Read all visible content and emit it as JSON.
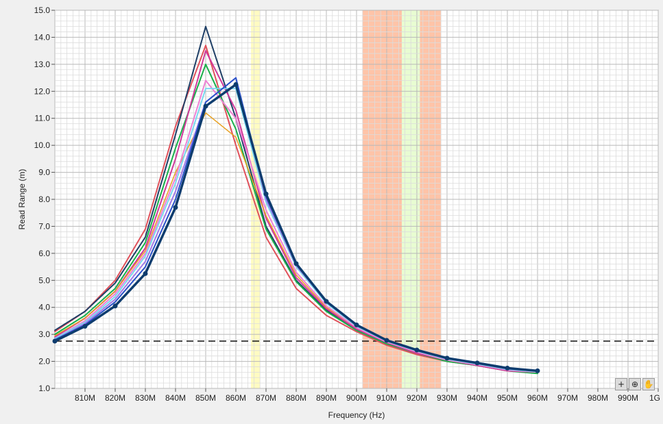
{
  "chart_data": {
    "type": "line",
    "xlabel": "Frequency (Hz)",
    "ylabel": "Read Range (m)",
    "xlim": [
      800,
      1000
    ],
    "ylim": [
      1.0,
      15.0
    ],
    "x_tick_values": [
      810,
      820,
      830,
      840,
      850,
      860,
      870,
      880,
      890,
      900,
      910,
      920,
      930,
      940,
      950,
      960,
      970,
      980,
      990,
      1000
    ],
    "x_tick_labels": [
      "810M",
      "820M",
      "830M",
      "840M",
      "850M",
      "860M",
      "870M",
      "880M",
      "890M",
      "900M",
      "910M",
      "920M",
      "930M",
      "940M",
      "950M",
      "960M",
      "970M",
      "980M",
      "990M",
      "1G"
    ],
    "y_tick_values": [
      1,
      2,
      3,
      4,
      5,
      6,
      7,
      8,
      9,
      10,
      11,
      12,
      13,
      14,
      15
    ],
    "y_tick_labels": [
      "1.0",
      "2.0",
      "3.0",
      "4.0",
      "5.0",
      "6.0",
      "7.0",
      "8.0",
      "9.0",
      "10.0",
      "11.0",
      "12.0",
      "13.0",
      "14.0",
      "15.0"
    ],
    "grid": true,
    "threshold_line": 2.75,
    "bands": [
      {
        "from": 865,
        "to": 868,
        "color": "#fffbc2"
      },
      {
        "from": 902,
        "to": 915,
        "color": "#ffc4a8"
      },
      {
        "from": 915,
        "to": 921,
        "color": "#e8fcd2"
      },
      {
        "from": 921,
        "to": 928,
        "color": "#ffc4a8"
      }
    ],
    "x": [
      800,
      810,
      820,
      830,
      840,
      850,
      860,
      870,
      880,
      890,
      900,
      910,
      920,
      930,
      940,
      950,
      960
    ],
    "series": [
      {
        "color": "#e0505a",
        "width": 2,
        "values": [
          3.1,
          3.85,
          5.0,
          6.9,
          10.7,
          13.7,
          10.0,
          6.6,
          4.7,
          3.7,
          3.1,
          2.6,
          2.25,
          2.0,
          1.85,
          1.65,
          1.6
        ]
      },
      {
        "color": "#1f3f66",
        "width": 2,
        "values": [
          3.15,
          3.85,
          4.9,
          6.6,
          10.4,
          14.4,
          11.0,
          7.0,
          5.0,
          3.9,
          3.2,
          2.7,
          2.35,
          2.05,
          1.9,
          1.7,
          1.62
        ]
      },
      {
        "color": "#18b04a",
        "width": 2,
        "values": [
          3.0,
          3.7,
          4.7,
          6.4,
          9.9,
          13.0,
          10.6,
          6.9,
          4.95,
          3.85,
          3.15,
          2.65,
          2.3,
          2.0,
          1.85,
          1.65,
          1.55
        ]
      },
      {
        "color": "#d0389a",
        "width": 2,
        "values": [
          2.9,
          3.6,
          4.6,
          6.2,
          9.5,
          13.5,
          11.3,
          7.3,
          5.1,
          3.95,
          3.2,
          2.7,
          2.3,
          2.05,
          1.85,
          1.65,
          1.6
        ]
      },
      {
        "color": "#e8a020",
        "width": 1.5,
        "values": [
          2.95,
          3.6,
          4.6,
          6.1,
          9.0,
          11.2,
          10.3,
          7.4,
          5.2,
          4.0,
          3.25,
          2.72,
          2.35,
          2.05,
          1.88,
          1.68,
          1.6
        ]
      },
      {
        "color": "#ee82d4",
        "width": 2,
        "values": [
          2.85,
          3.5,
          4.5,
          6.0,
          8.8,
          12.4,
          11.0,
          7.6,
          5.3,
          4.05,
          3.25,
          2.72,
          2.35,
          2.05,
          1.88,
          1.68,
          1.6
        ]
      },
      {
        "color": "#7ad7f0",
        "width": 2,
        "values": [
          2.85,
          3.45,
          4.4,
          5.9,
          8.6,
          12.1,
          12.1,
          7.9,
          5.5,
          4.15,
          3.3,
          2.75,
          2.38,
          2.08,
          1.9,
          1.7,
          1.62
        ]
      },
      {
        "color": "#a07ae8",
        "width": 2,
        "values": [
          2.8,
          3.4,
          4.3,
          5.7,
          8.3,
          11.6,
          12.5,
          8.0,
          5.55,
          4.2,
          3.35,
          2.78,
          2.4,
          2.1,
          1.92,
          1.72,
          1.64
        ]
      },
      {
        "color": "#2a52c8",
        "width": 2,
        "values": [
          2.8,
          3.35,
          4.2,
          5.5,
          8.0,
          11.6,
          12.5,
          8.1,
          5.6,
          4.2,
          3.35,
          2.78,
          2.42,
          2.12,
          1.94,
          1.74,
          1.65
        ]
      },
      {
        "color": "#0e3c6e",
        "width": 3.5,
        "markers": true,
        "values": [
          2.75,
          3.3,
          4.05,
          5.25,
          7.7,
          11.45,
          12.25,
          8.2,
          5.62,
          4.22,
          3.35,
          2.78,
          2.42,
          2.12,
          1.94,
          1.75,
          1.65
        ]
      }
    ]
  },
  "tools": {
    "cursor_icon": "crosshair-icon",
    "zoom_icon": "zoom-icon",
    "pan_icon": "hand-icon"
  }
}
